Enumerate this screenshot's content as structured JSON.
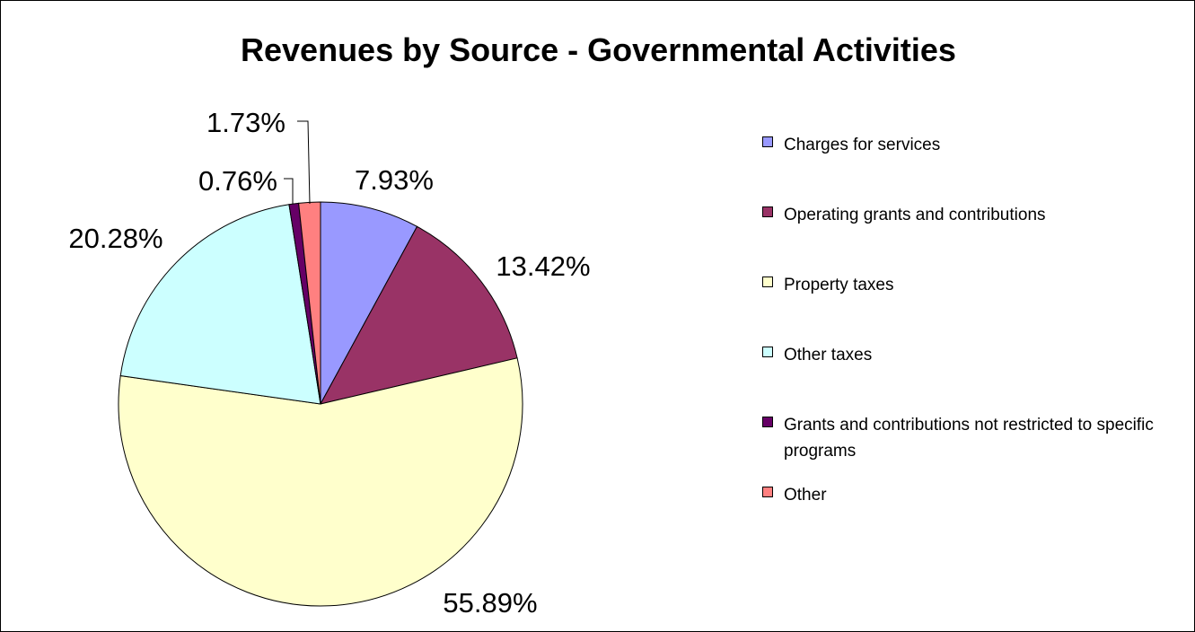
{
  "chart_data": {
    "type": "pie",
    "title": "Revenues by Source - Governmental Activities",
    "legend_position": "right",
    "slices": [
      {
        "name": "Charges for services",
        "value": 7.93,
        "label": "7.93%",
        "color": "#9999ff"
      },
      {
        "name": "Operating grants and contributions",
        "value": 13.42,
        "label": "13.42%",
        "color": "#993366"
      },
      {
        "name": "Property taxes",
        "value": 55.89,
        "label": "55.89%",
        "color": "#ffffcc"
      },
      {
        "name": "Other taxes",
        "value": 20.28,
        "label": "20.28%",
        "color": "#ccffff"
      },
      {
        "name": "Grants and contributions not restricted to specific programs",
        "value": 0.76,
        "label": "0.76%",
        "color": "#660066"
      },
      {
        "name": "Other",
        "value": 1.73,
        "label": "1.73%",
        "color": "#ff8080"
      }
    ]
  }
}
